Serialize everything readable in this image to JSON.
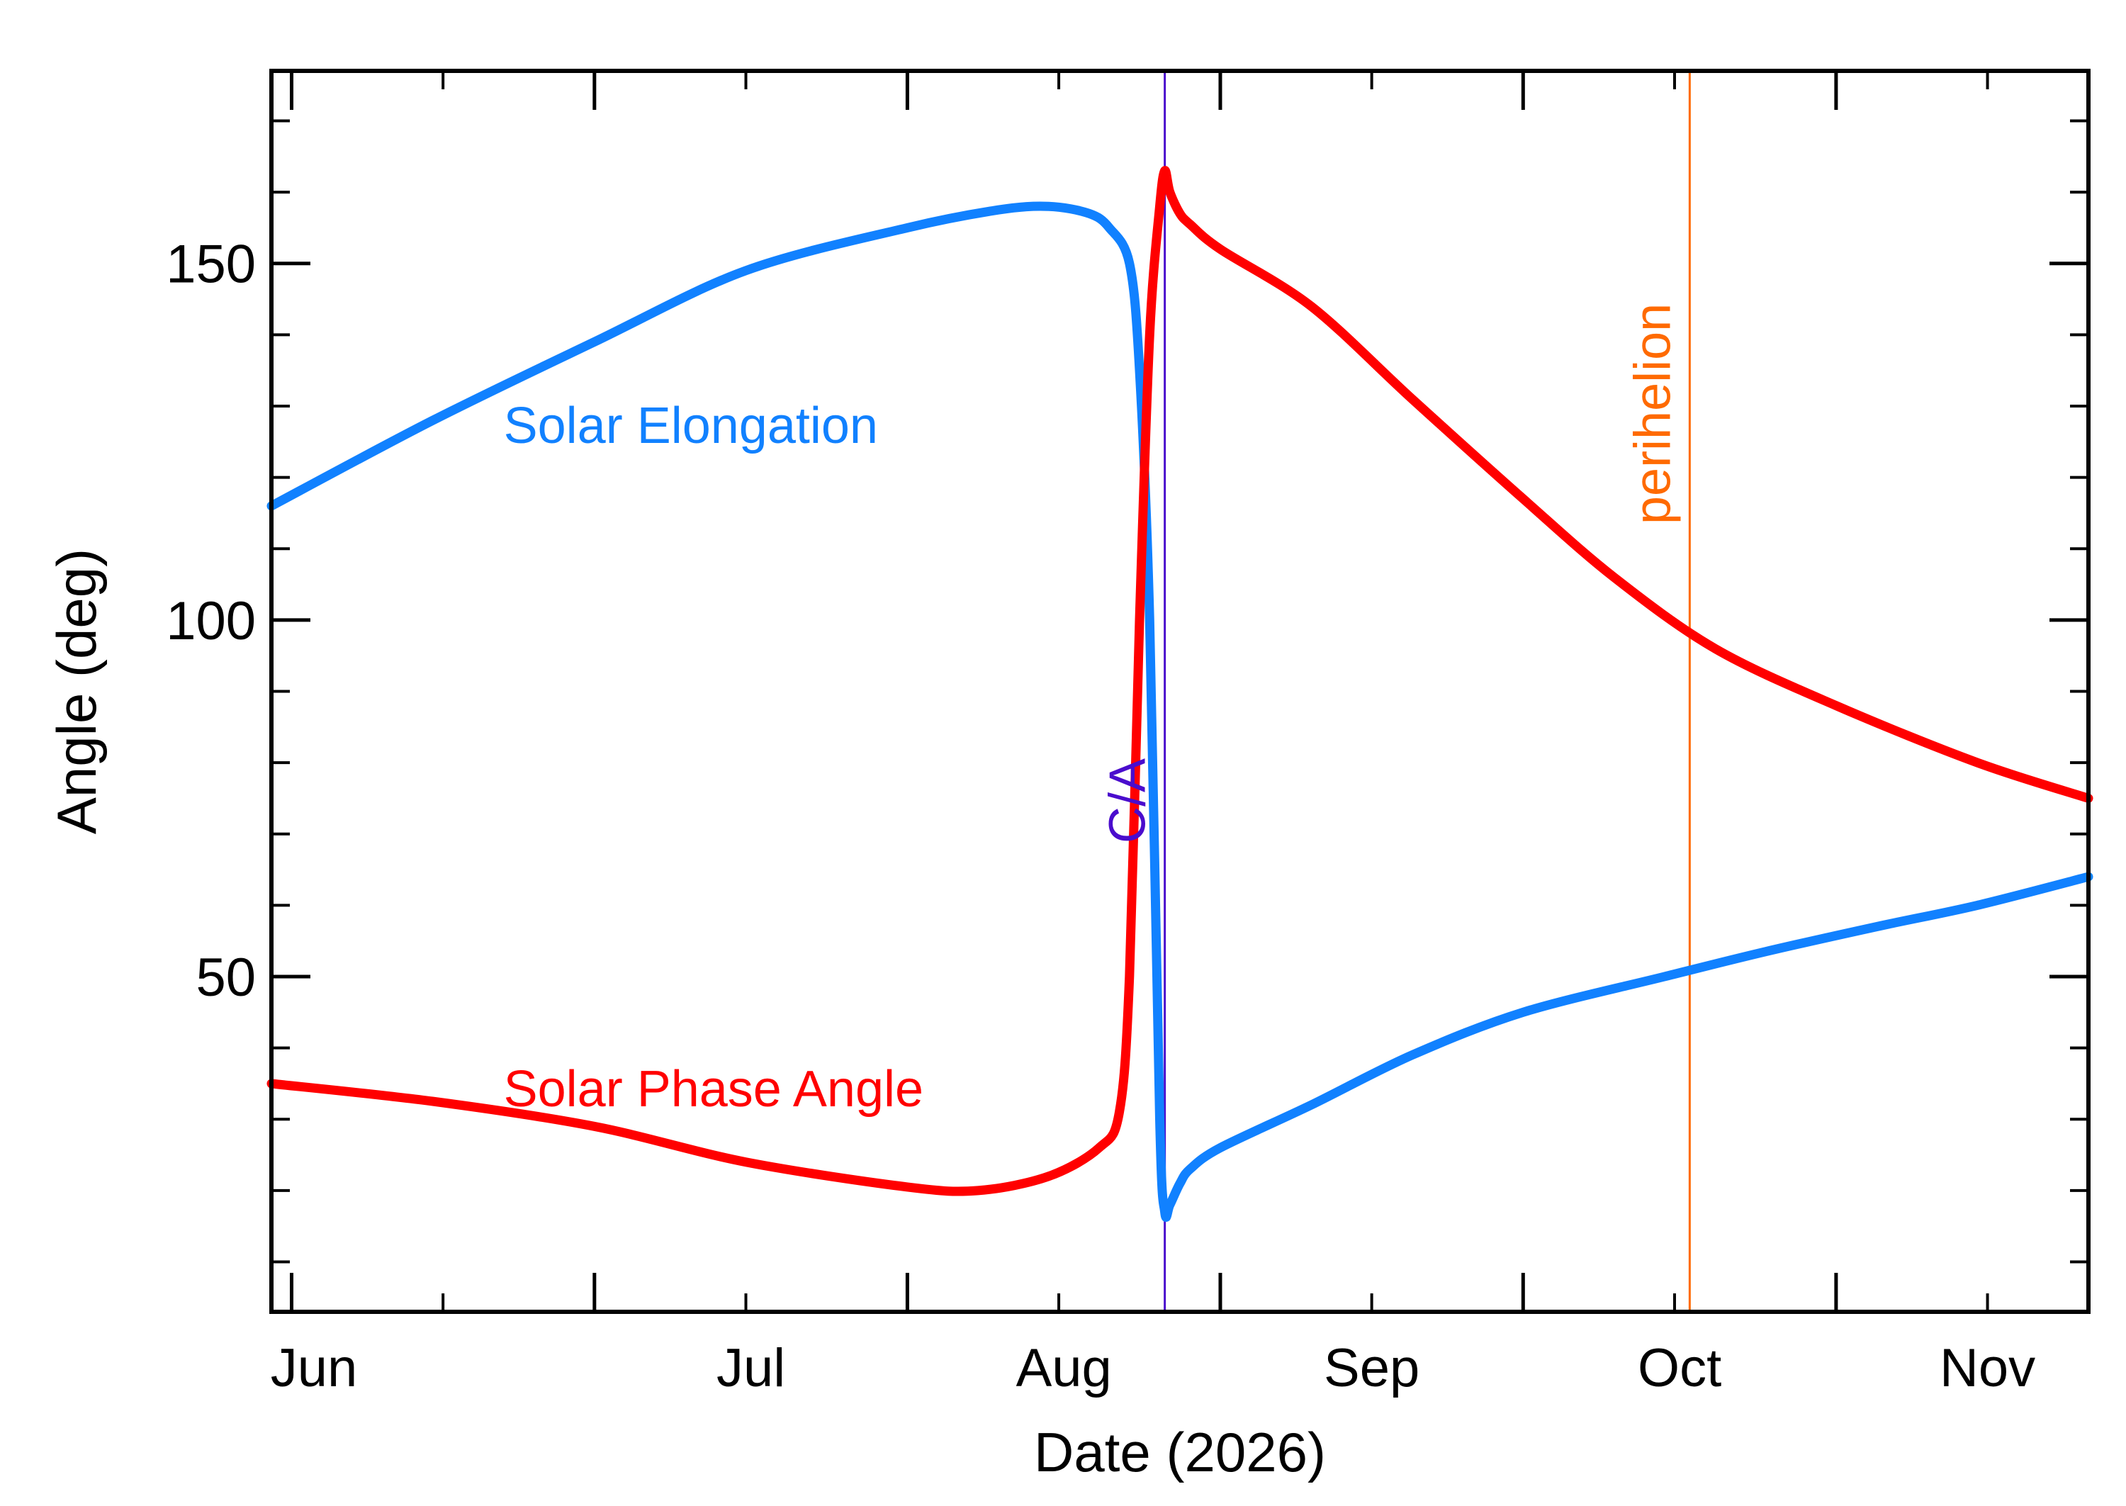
{
  "chart_data": {
    "type": "line",
    "xlabel": "Date (2026)",
    "ylabel": "Angle (deg)",
    "xlim": [
      "2026-05-30",
      "2026-11-26"
    ],
    "ylim": [
      3,
      177
    ],
    "x_ticks": [
      {
        "label": "Jun",
        "date": "2026-06-01"
      },
      {
        "label": "Jul",
        "date": "2026-07-01"
      },
      {
        "label": "Aug",
        "date": "2026-08-01"
      },
      {
        "label": "Sep",
        "date": "2026-09-01"
      },
      {
        "label": "Oct",
        "date": "2026-10-01"
      },
      {
        "label": "Nov",
        "date": "2026-11-01"
      }
    ],
    "y_ticks": [
      50,
      100,
      150
    ],
    "grid": false,
    "series": [
      {
        "name": "Solar Elongation",
        "color": "#1181ff",
        "x": [
          "2026-05-30",
          "2026-06-15",
          "2026-07-01",
          "2026-07-16",
          "2026-08-01",
          "2026-08-10",
          "2026-08-15",
          "2026-08-19",
          "2026-08-21",
          "2026-08-23",
          "2026-08-24",
          "2026-08-25",
          "2026-08-26",
          "2026-08-26T12:00",
          "2026-08-27",
          "2026-08-28",
          "2026-08-29",
          "2026-09-01",
          "2026-09-10",
          "2026-09-20",
          "2026-10-01",
          "2026-10-15",
          "2026-10-25",
          "2026-11-05",
          "2026-11-15",
          "2026-11-26"
        ],
        "y": [
          116,
          128,
          139,
          149,
          155,
          157.5,
          158,
          157,
          155,
          150,
          135,
          100,
          30,
          17,
          18,
          21,
          23,
          26,
          32,
          39,
          45,
          50,
          53.5,
          57,
          60,
          64
        ]
      },
      {
        "name": "Solar Phase Angle",
        "color": "#ff0000",
        "x": [
          "2026-05-30",
          "2026-06-15",
          "2026-07-01",
          "2026-07-16",
          "2026-08-01",
          "2026-08-08",
          "2026-08-15",
          "2026-08-20",
          "2026-08-22",
          "2026-08-23",
          "2026-08-24",
          "2026-08-25",
          "2026-08-26",
          "2026-08-26T12:00",
          "2026-08-27",
          "2026-08-28",
          "2026-08-29",
          "2026-09-01",
          "2026-09-10",
          "2026-09-20",
          "2026-10-01",
          "2026-10-10",
          "2026-10-20",
          "2026-11-01",
          "2026-11-15",
          "2026-11-26"
        ],
        "y": [
          35,
          32.5,
          29,
          24,
          20.5,
          20,
          22,
          26,
          31,
          50,
          100,
          140,
          158,
          163,
          160,
          157,
          155.5,
          152,
          144,
          131,
          117,
          106,
          96,
          88,
          80,
          75
        ]
      }
    ],
    "annotations": [
      {
        "text": "Solar Elongation",
        "color": "#1181ff",
        "x": "2026-06-22",
        "y": 127
      },
      {
        "text": "Solar Phase Angle",
        "color": "#ff0000",
        "x": "2026-06-22",
        "y": 34
      },
      {
        "text": "C/A",
        "color": "#4a0ccd",
        "x": "2026-08-26T12:00",
        "orientation": "vertical"
      },
      {
        "text": "perihelion",
        "color": "#ff6a00",
        "x": "2026-10-17T12:00",
        "orientation": "vertical"
      }
    ],
    "vlines": [
      {
        "date": "2026-08-26T12:00",
        "color": "#4a0ccd",
        "label": "C/A"
      },
      {
        "date": "2026-10-17T12:00",
        "color": "#ff6a00",
        "label": "perihelion"
      }
    ]
  }
}
